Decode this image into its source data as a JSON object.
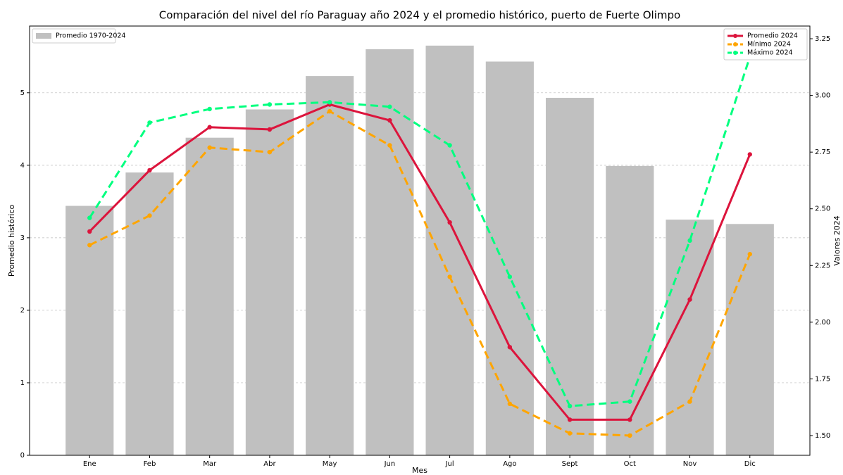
{
  "chart_data": {
    "type": "bar",
    "title": "Comparación del nivel del río Paraguay año 2024 y el promedio histórico, puerto de Fuerte Olimpo",
    "x_label": "Mes",
    "y_label": "Promedio histórico",
    "y2_label": "Valores 2024",
    "categories": [
      "Ene",
      "Feb",
      "Mar",
      "Abr",
      "May",
      "Jun",
      "Jul",
      "Ago",
      "Sept",
      "Oct",
      "Nov",
      "Dic"
    ],
    "series": [
      {
        "name": "Promedio 1970-2024",
        "type": "bar",
        "color": "#c0c0c0",
        "axis": "y",
        "values": [
          3.44,
          3.9,
          4.38,
          4.77,
          5.23,
          5.6,
          5.65,
          5.43,
          4.93,
          3.99,
          3.25,
          3.19
        ]
      },
      {
        "name": "Promedio 2024",
        "type": "line",
        "color": "#dc143c",
        "linestyle": "solid",
        "axis": "y2",
        "values": [
          2.4,
          2.67,
          2.86,
          2.85,
          2.96,
          2.89,
          2.44,
          1.89,
          1.57,
          1.57,
          2.1,
          2.74
        ]
      },
      {
        "name": "Mínimo 2024",
        "type": "line",
        "color": "#ffa500",
        "linestyle": "dashed",
        "axis": "y2",
        "values": [
          2.34,
          2.47,
          2.77,
          2.75,
          2.93,
          2.78,
          2.2,
          1.64,
          1.51,
          1.5,
          1.65,
          2.3
        ]
      },
      {
        "name": "Máximo 2024",
        "type": "line",
        "color": "#00ff7f",
        "linestyle": "dashed",
        "axis": "y2",
        "values": [
          2.46,
          2.88,
          2.94,
          2.96,
          2.97,
          2.95,
          2.78,
          2.2,
          1.63,
          1.65,
          2.36,
          3.17
        ]
      }
    ],
    "ylim": [
      0,
      5.92
    ],
    "yticks": [
      0,
      1,
      2,
      3,
      4,
      5
    ],
    "y2lim": [
      1.413,
      3.306
    ],
    "y2ticks": [
      {
        "value": 1.5,
        "label": "1.50"
      },
      {
        "value": 1.75,
        "label": "1.75"
      },
      {
        "value": 2.0,
        "label": "2.00"
      },
      {
        "value": 2.25,
        "label": "2.25"
      },
      {
        "value": 2.5,
        "label": "2.50"
      },
      {
        "value": 2.75,
        "label": "2.75"
      },
      {
        "value": 3.0,
        "label": "3.00"
      },
      {
        "value": 3.25,
        "label": "3.25"
      }
    ],
    "grid": true,
    "legend_bars": "upper left",
    "legend_lines": "upper right"
  }
}
